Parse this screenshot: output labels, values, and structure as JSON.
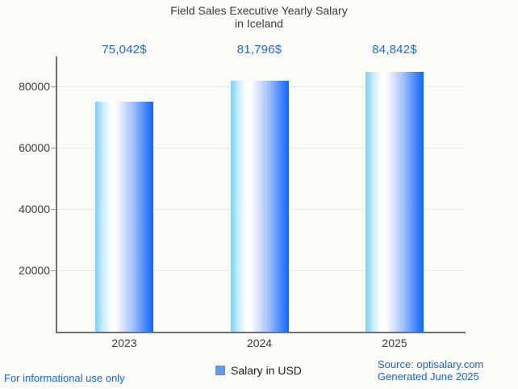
{
  "chart_data": {
    "type": "bar",
    "title": "Field Sales Executive Yearly Salary",
    "subtitle": "in Iceland",
    "categories": [
      "2023",
      "2024",
      "2025"
    ],
    "series": [
      {
        "name": "Salary in USD",
        "values": [
          75042,
          81796,
          84842
        ]
      }
    ],
    "value_labels": [
      "75,042$",
      "81,796$",
      "84,842$"
    ],
    "ylabel": "",
    "xlabel": "",
    "ylim": [
      0,
      90000
    ],
    "yticks": [
      20000,
      40000,
      60000,
      80000
    ],
    "ytick_labels": [
      "20000",
      "40000",
      "60000",
      "80000"
    ],
    "grid": true,
    "legend_position": "bottom",
    "colors": {
      "bar_gradient_left": "#79cff8",
      "bar_gradient_mid": "#ffffff",
      "bar_gradient_right": "#1569f0",
      "value_label_blue": "#1b6ce9",
      "footer_blue": "#1b64e0",
      "axis_gray": "#6f6f6f",
      "gridline_gray": "#e8e8e8",
      "title_gray": "#3c3c3c",
      "legend_swatch_blue": "#5b9bf0",
      "background": "#fbfbf8"
    }
  },
  "legend": {
    "label": "Salary in USD"
  },
  "footer": {
    "left_note": "For informational use only",
    "source": "Source: optisalary.com",
    "generated": "Generated June 2025"
  }
}
